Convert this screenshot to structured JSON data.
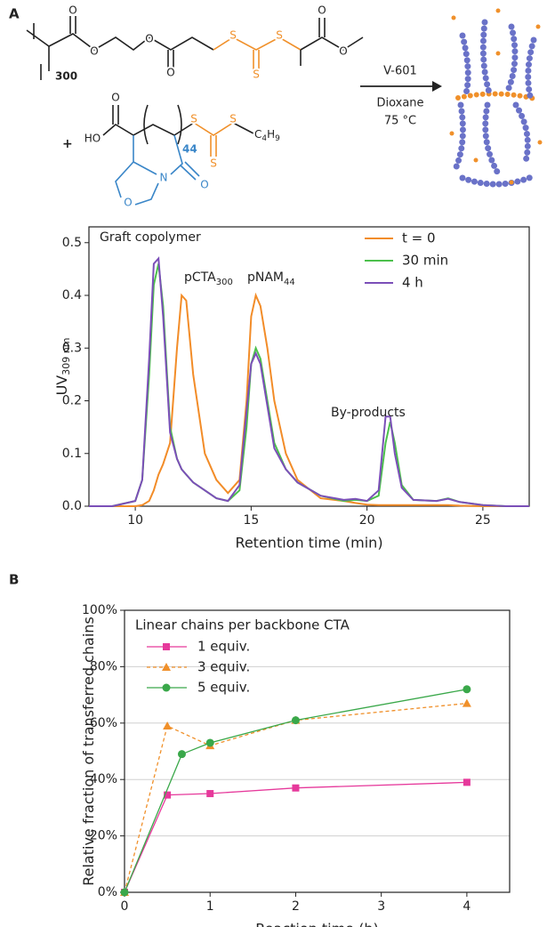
{
  "panel_labels": [
    "A",
    "B"
  ],
  "scheme": {
    "top_atoms": [
      "O",
      "O",
      "O",
      "O",
      "S",
      "S",
      "S",
      "O",
      "O"
    ],
    "top_subscript": "300",
    "plus": "+",
    "bottom_atoms": [
      "HO",
      "O",
      "S",
      "S",
      "S",
      "N",
      "O",
      "O"
    ],
    "bottom_subscript": "44",
    "group_parts": [
      "C",
      "4",
      "H",
      "9"
    ],
    "reagent": "V-601",
    "solvent": "Dioxane",
    "temperature": "75 °C"
  },
  "chart_data": [
    {
      "type": "line",
      "xlabel": "Retention time (min)",
      "ylabel": "UV",
      "ylabel_sub": "309 nm",
      "x": [
        8,
        9,
        10,
        10.3,
        10.6,
        10.8,
        11,
        11.2,
        11.5,
        11.8,
        12,
        12.2,
        12.5,
        13,
        13.5,
        14,
        14.5,
        14.8,
        15,
        15.2,
        15.4,
        15.7,
        16,
        16.5,
        17,
        18,
        19,
        19.5,
        20,
        20.5,
        20.8,
        21,
        21.2,
        21.5,
        22,
        23,
        23.5,
        24,
        25,
        26,
        27
      ],
      "series": [
        {
          "name": "t = 0",
          "color": "#f28c28",
          "values": [
            0,
            0,
            0,
            0.002,
            0.01,
            0.03,
            0.06,
            0.08,
            0.12,
            0.3,
            0.4,
            0.39,
            0.25,
            0.1,
            0.05,
            0.025,
            0.05,
            0.2,
            0.36,
            0.4,
            0.38,
            0.3,
            0.2,
            0.1,
            0.05,
            0.015,
            0.01,
            0.006,
            0.003,
            0.002,
            0.002,
            0.002,
            0.002,
            0.002,
            0.002,
            0.002,
            0.002,
            0.001,
            0,
            0,
            0
          ]
        },
        {
          "name": "30 min",
          "color": "#4cc04c",
          "values": [
            0,
            0,
            0.01,
            0.05,
            0.25,
            0.42,
            0.46,
            0.38,
            0.15,
            0.09,
            0.07,
            0.06,
            0.045,
            0.03,
            0.015,
            0.01,
            0.03,
            0.15,
            0.27,
            0.3,
            0.28,
            0.2,
            0.12,
            0.07,
            0.045,
            0.02,
            0.01,
            0.012,
            0.01,
            0.02,
            0.12,
            0.16,
            0.12,
            0.04,
            0.012,
            0.01,
            0.015,
            0.008,
            0.002,
            0,
            0
          ]
        },
        {
          "name": "4 h",
          "color": "#7b4fb8",
          "values": [
            0,
            0,
            0.01,
            0.05,
            0.28,
            0.46,
            0.47,
            0.36,
            0.14,
            0.09,
            0.07,
            0.06,
            0.045,
            0.03,
            0.015,
            0.01,
            0.04,
            0.18,
            0.27,
            0.29,
            0.27,
            0.19,
            0.11,
            0.07,
            0.045,
            0.02,
            0.012,
            0.014,
            0.01,
            0.03,
            0.17,
            0.17,
            0.1,
            0.035,
            0.012,
            0.01,
            0.014,
            0.008,
            0.002,
            0,
            0
          ]
        }
      ],
      "annotations": [
        {
          "text": "Graft copolymer"
        },
        {
          "text": "pCTA",
          "sub": "300"
        },
        {
          "text": "pNAM",
          "sub": "44"
        },
        {
          "text": "By-products"
        }
      ],
      "xlim": [
        8,
        27
      ],
      "xticks": [
        10,
        15,
        20,
        25
      ],
      "ylim": [
        0,
        0.53
      ],
      "yticks": [
        {
          "value": 0,
          "label": "0.0"
        },
        0.1,
        0.2,
        0.3,
        0.4,
        0.5
      ],
      "grid": false,
      "legend": "upper right"
    },
    {
      "type": "line",
      "xlabel": "Reaction time (h)",
      "ylabel": "Relative fraction of transferred chains",
      "legend_title": "Linear chains per backbone CTA",
      "series": [
        {
          "name": "1 equiv.",
          "color": "#e6399b",
          "marker": "square",
          "dashed": false,
          "x": [
            0,
            0.5,
            1,
            2,
            4
          ],
          "values": [
            0,
            34.5,
            35,
            37,
            39
          ]
        },
        {
          "name": "3 equiv.",
          "color": "#f0902a",
          "marker": "triangle",
          "dashed": true,
          "x": [
            0,
            0.5,
            1,
            2,
            4
          ],
          "values": [
            0,
            59,
            52,
            61,
            67
          ]
        },
        {
          "name": "5 equiv.",
          "color": "#3aa84a",
          "marker": "circle",
          "dashed": false,
          "x": [
            0,
            0.67,
            1,
            2,
            4
          ],
          "values": [
            0,
            49,
            53,
            61,
            72
          ]
        }
      ],
      "xlim": [
        0,
        4.5
      ],
      "xticks": [
        0,
        1,
        2,
        3,
        4
      ],
      "ylim": [
        0,
        100
      ],
      "yticks": [
        {
          "value": 0,
          "label": "0%"
        },
        {
          "value": 20,
          "label": "20%"
        },
        {
          "value": 40,
          "label": "40%"
        },
        {
          "value": 60,
          "label": "60%"
        },
        {
          "value": 80,
          "label": "80%"
        },
        {
          "value": 100,
          "label": "100%"
        }
      ],
      "grid": true,
      "legend": "upper left"
    }
  ]
}
